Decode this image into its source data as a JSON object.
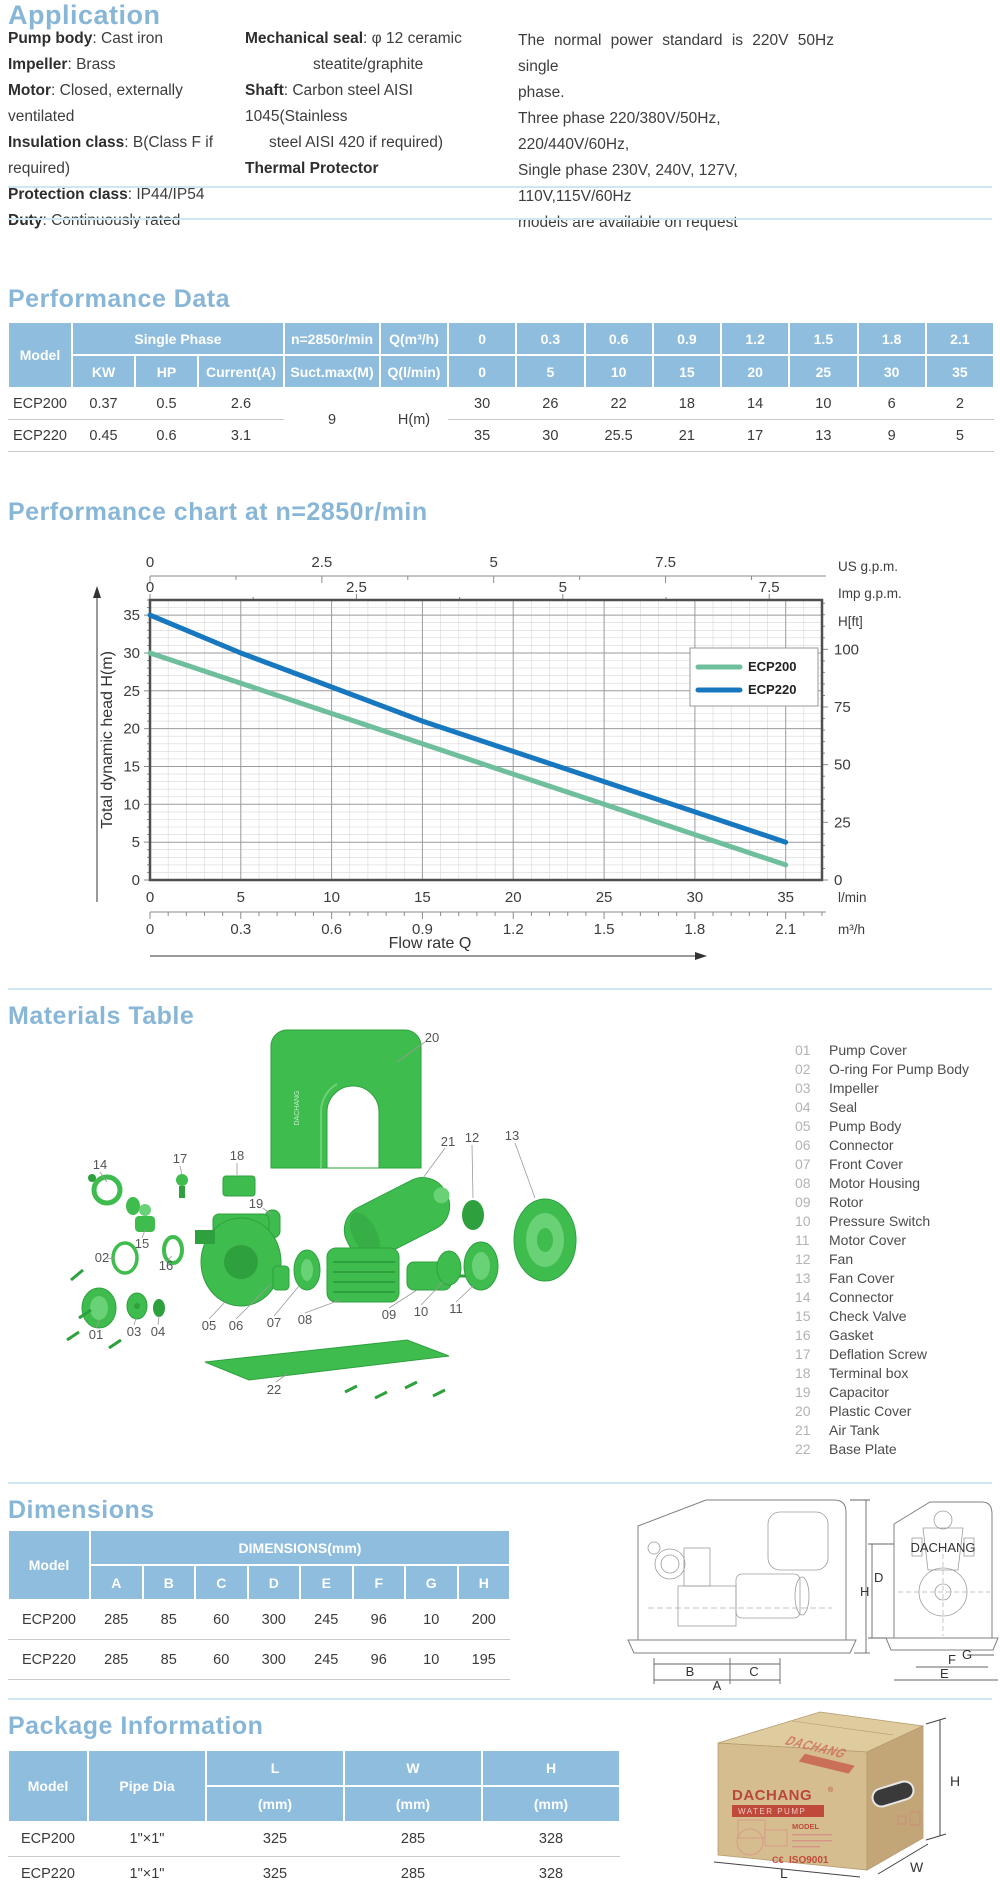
{
  "application": {
    "title": "Application",
    "col1": [
      {
        "label": "Pump body",
        "text": ": Cast iron"
      },
      {
        "label": "Impeller",
        "text": ": Brass"
      },
      {
        "label": "Motor",
        "text": ": Closed, externally ventilated"
      },
      {
        "label": "Insulation class",
        "text": ": B(Class F if required)"
      },
      {
        "label": "Protection class",
        "text": ": IP44/IP54"
      },
      {
        "label": "Duty",
        "text": ": Continuously rated"
      }
    ],
    "col2": [
      {
        "label": "Mechanical seal",
        "text": ": φ 12 ceramic",
        "cont": "steatite/graphite"
      },
      {
        "label": "Shaft",
        "text": ": Carbon steel  AISI 1045(Stainless",
        "cont": "steel AISI 420 if required)"
      },
      {
        "label": "Thermal Protector",
        "text": "",
        "cont": ""
      }
    ],
    "col3": [
      "The normal power standard is 220V 50Hz single",
      "phase.",
      "Three phase 220/380V/50Hz, 220/440V/60Hz,",
      "Single phase 230V, 240V, 127V, 110V,115V/60Hz",
      "models are available on request"
    ]
  },
  "performance": {
    "title": "Performance Data",
    "header": {
      "model": "Model",
      "single_phase": "Single Phase",
      "kw": "KW",
      "hp": "HP",
      "current": "Current(A)",
      "n": "n=2850r/min",
      "suct": "Suct.max(M)",
      "q_m3h": "Q(m³/h)",
      "q_lmin": "Q(l/min)",
      "q_m3h_vals": [
        "0",
        "0.3",
        "0.6",
        "0.9",
        "1.2",
        "1.5",
        "1.8",
        "2.1"
      ],
      "q_lmin_vals": [
        "0",
        "5",
        "10",
        "15",
        "20",
        "25",
        "30",
        "35"
      ]
    },
    "suct_max": "9",
    "h_label": "H(m)",
    "rows": [
      {
        "model": "ECP200",
        "kw": "0.37",
        "hp": "0.5",
        "current": "2.6",
        "h": [
          "30",
          "26",
          "22",
          "18",
          "14",
          "10",
          "6",
          "2"
        ]
      },
      {
        "model": "ECP220",
        "kw": "0.45",
        "hp": "0.6",
        "current": "3.1",
        "h": [
          "35",
          "30",
          "25.5",
          "21",
          "17",
          "13",
          "9",
          "5"
        ]
      }
    ]
  },
  "chart_data": {
    "type": "line",
    "title": "Performance chart at n=2850r/min",
    "x": [
      0,
      5,
      10,
      15,
      20,
      25,
      30,
      35
    ],
    "series": [
      {
        "name": "ECP200",
        "color": "#6fbf9c",
        "values": [
          30,
          26,
          22,
          18,
          14,
          10,
          6,
          2
        ]
      },
      {
        "name": "ECP220",
        "color": "#1878bf",
        "values": [
          35,
          30,
          25.5,
          21,
          17,
          13,
          9,
          5
        ]
      }
    ],
    "xlabel": "Flow rate Q",
    "ylabel": "Total dynamic head H(m)",
    "xlim": [
      0,
      37
    ],
    "ylim": [
      0,
      37
    ],
    "grid": true,
    "legend_position": "upper right",
    "y_left_ticks": [
      0,
      5,
      10,
      15,
      20,
      25,
      30,
      35
    ],
    "y_right": {
      "unit": "H[ft]",
      "ticks": [
        100,
        75,
        50,
        25,
        0
      ]
    },
    "x_units_top": [
      {
        "unit": "US g.p.m.",
        "ticks": [
          0,
          2.5,
          5,
          7.5
        ],
        "lmin_per_unit": 3.785
      },
      {
        "unit": "Imp g.p.m.",
        "ticks": [
          0,
          2.5,
          5,
          7.5
        ],
        "lmin_per_unit": 4.546
      }
    ],
    "x_units_bottom": [
      {
        "unit": "l/min",
        "ticks": [
          0,
          5,
          10,
          15,
          20,
          25,
          30,
          35
        ],
        "lmin_per_unit": 1
      },
      {
        "unit": "m³/h",
        "ticks": [
          0,
          0.3,
          0.6,
          0.9,
          1.2,
          1.5,
          1.8,
          2.1
        ],
        "lmin_per_unit": 16.6667
      }
    ]
  },
  "materials": {
    "title": "Materials Table",
    "cover_brand": "DACHANG",
    "parts": [
      {
        "num": "01",
        "name": "Pump Cover"
      },
      {
        "num": "02",
        "name": "O-ring For Pump Body"
      },
      {
        "num": "03",
        "name": "Impeller"
      },
      {
        "num": "04",
        "name": "Seal"
      },
      {
        "num": "05",
        "name": "Pump Body"
      },
      {
        "num": "06",
        "name": "Connector"
      },
      {
        "num": "07",
        "name": "Front Cover"
      },
      {
        "num": "08",
        "name": "Motor Housing"
      },
      {
        "num": "09",
        "name": "Rotor"
      },
      {
        "num": "10",
        "name": "Pressure Switch"
      },
      {
        "num": "11",
        "name": "Motor Cover"
      },
      {
        "num": "12",
        "name": "Fan"
      },
      {
        "num": "13",
        "name": "Fan Cover"
      },
      {
        "num": "14",
        "name": "Connector"
      },
      {
        "num": "15",
        "name": "Check Valve"
      },
      {
        "num": "16",
        "name": "Gasket"
      },
      {
        "num": "17",
        "name": "Deflation Screw"
      },
      {
        "num": "18",
        "name": "Terminal box"
      },
      {
        "num": "19",
        "name": "Capacitor"
      },
      {
        "num": "20",
        "name": "Plastic Cover"
      },
      {
        "num": "21",
        "name": "Air Tank"
      },
      {
        "num": "22",
        "name": "Base Plate"
      }
    ]
  },
  "dimensions": {
    "title": "Dimensions",
    "header": {
      "model": "Model",
      "group": "DIMENSIONS(mm)",
      "cols": [
        "A",
        "B",
        "C",
        "D",
        "E",
        "F",
        "G",
        "H"
      ]
    },
    "rows": [
      {
        "model": "ECP200",
        "vals": [
          "285",
          "85",
          "60",
          "300",
          "245",
          "96",
          "10",
          "200"
        ]
      },
      {
        "model": "ECP220",
        "vals": [
          "285",
          "85",
          "60",
          "300",
          "245",
          "96",
          "10",
          "195"
        ]
      }
    ],
    "drawing_brand": "DACHANG",
    "labels_side": [
      "B",
      "C",
      "A",
      "D"
    ],
    "labels_front": [
      "H",
      "G",
      "F",
      "E"
    ]
  },
  "package": {
    "title": "Package Information",
    "header": {
      "model": "Model",
      "pipe": "Pipe Dia",
      "l": "L",
      "w": "W",
      "h": "H",
      "mm": "(mm)"
    },
    "rows": [
      {
        "model": "ECP200",
        "pipe": "1\"×1\"",
        "l": "325",
        "w": "285",
        "h": "328"
      },
      {
        "model": "ECP220",
        "pipe": "1\"×1\"",
        "l": "325",
        "w": "285",
        "h": "328"
      }
    ],
    "box": {
      "brand": "DACHANG",
      "reg": "®",
      "band": "WATER PUMP",
      "model_label": "MODEL",
      "ce": "C€",
      "cert": "ISO9001",
      "dims": [
        "H",
        "W",
        "L"
      ]
    }
  }
}
